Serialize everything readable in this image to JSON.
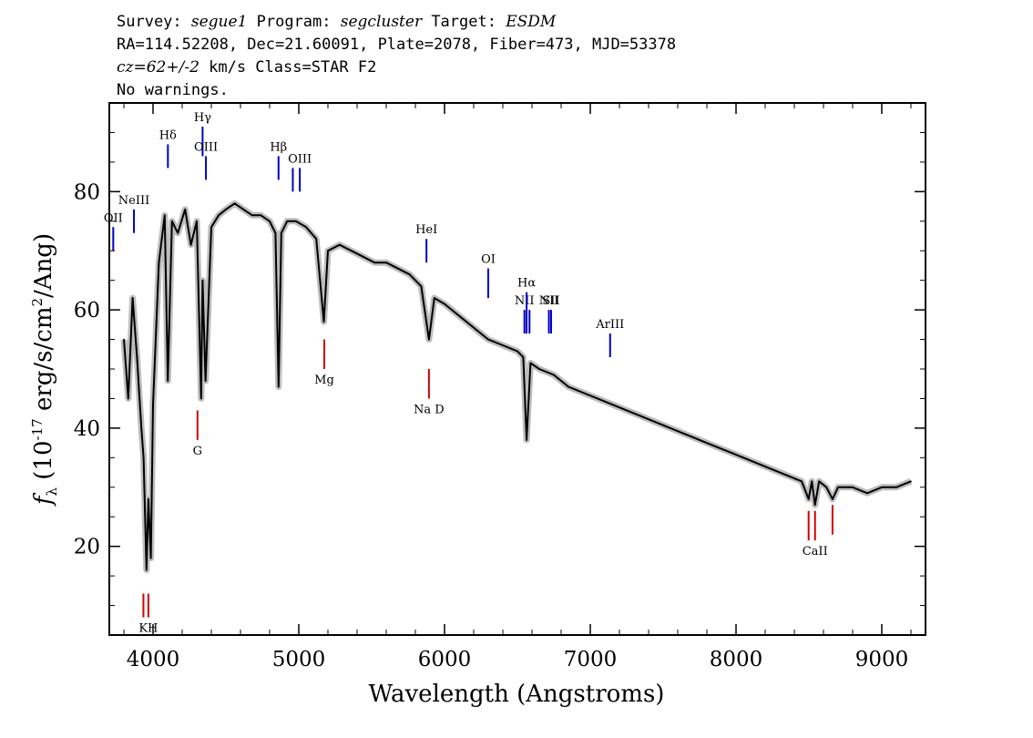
{
  "header": {
    "line1": {
      "survey_label": "Survey: ",
      "survey": "segue1",
      "program_label": " Program: ",
      "program": "segcluster",
      "target_label": " Target: ",
      "target": "ESDM"
    },
    "line2": "RA=114.52208, Dec=21.60091, Plate=2078, Fiber=473, MJD=53378",
    "line3": {
      "cz": "cz=62+/-2",
      "rest": " km/s Class=STAR F2"
    },
    "line4": "No warnings."
  },
  "chart_data": {
    "type": "line",
    "xlabel": "Wavelength (Angstroms)",
    "ylabel": "f_λ (10^-17 erg/s/cm^2/Ang)",
    "ylabel_parts": {
      "f": "f",
      "lambda": "λ",
      "open": " (10",
      "exp1": "-17",
      "mid": " erg/s/cm",
      "exp2": "2",
      "close": "/Ang)"
    },
    "xlim": [
      3700,
      9300
    ],
    "ylim": [
      5,
      95
    ],
    "xticks": [
      4000,
      5000,
      6000,
      7000,
      8000,
      9000
    ],
    "xtick_labels": [
      "4000",
      "5000",
      "6000",
      "7000",
      "8000",
      "9000"
    ],
    "yticks": [
      20,
      40,
      60,
      80
    ],
    "ytick_labels": [
      "20",
      "40",
      "60",
      "80"
    ],
    "grid": false,
    "series": [
      {
        "style": "black",
        "x": [
          3800,
          3830,
          3860,
          3890,
          3920,
          3935,
          3955,
          3968,
          3985,
          4000,
          4040,
          4080,
          4101,
          4130,
          4170,
          4220,
          4260,
          4300,
          4330,
          4340,
          4360,
          4400,
          4450,
          4500,
          4560,
          4620,
          4680,
          4740,
          4800,
          4840,
          4861,
          4880,
          4920,
          4980,
          5050,
          5120,
          5172,
          5200,
          5280,
          5360,
          5440,
          5520,
          5600,
          5680,
          5760,
          5840,
          5893,
          5930,
          6000,
          6100,
          6200,
          6300,
          6400,
          6500,
          6540,
          6563,
          6590,
          6650,
          6750,
          6850,
          6950,
          7050,
          7150,
          7250,
          7350,
          7450,
          7550,
          7650,
          7750,
          7850,
          7950,
          8050,
          8150,
          8250,
          8350,
          8450,
          8498,
          8520,
          8542,
          8570,
          8620,
          8662,
          8700,
          8800,
          8900,
          9000,
          9100,
          9200
        ],
        "y": [
          55,
          45,
          62,
          52,
          40,
          35,
          16,
          28,
          18,
          44,
          68,
          76,
          48,
          75,
          73,
          77,
          71,
          75,
          45,
          65,
          48,
          74,
          76,
          77,
          78,
          77,
          76,
          76,
          75,
          73,
          47,
          73,
          75,
          75,
          74,
          72,
          58,
          70,
          71,
          70,
          69,
          68,
          68,
          67,
          66,
          64,
          55,
          62,
          61,
          59,
          57,
          55,
          54,
          53,
          52,
          38,
          51,
          50,
          49,
          47,
          46,
          45,
          44,
          43,
          42,
          41,
          40,
          39,
          38,
          37,
          36,
          35,
          34,
          33,
          32,
          31,
          28,
          31,
          27,
          31,
          30,
          28,
          30,
          30,
          29,
          30,
          30,
          31
        ]
      }
    ],
    "emission_lines": [
      {
        "label": "OII",
        "wavelength": 3727,
        "y_top": 74,
        "y_bottom": 70,
        "color": "#0000c8"
      },
      {
        "label": "NeIII",
        "wavelength": 3869,
        "y_top": 77,
        "y_bottom": 73,
        "color": "#0000c8"
      },
      {
        "label": "Hδ",
        "wavelength": 4102,
        "y_top": 88,
        "y_bottom": 84,
        "color": "#0000c8"
      },
      {
        "label": "Hγ",
        "wavelength": 4340,
        "y_top": 91,
        "y_bottom": 86,
        "color": "#0000c8"
      },
      {
        "label": "OIII",
        "wavelength": 4363,
        "y_top": 86,
        "y_bottom": 82,
        "color": "#0000c8"
      },
      {
        "label": "Hβ",
        "wavelength": 4861,
        "y_top": 86,
        "y_bottom": 82,
        "color": "#0000c8"
      },
      {
        "label": "",
        "wavelength": 4959,
        "y_top": 84,
        "y_bottom": 80,
        "color": "#0000c8"
      },
      {
        "label": "OIII",
        "wavelength": 5007,
        "y_top": 84,
        "y_bottom": 80,
        "color": "#0000c8"
      },
      {
        "label": "HeI",
        "wavelength": 5876,
        "y_top": 72,
        "y_bottom": 68,
        "color": "#0000c8"
      },
      {
        "label": "OI",
        "wavelength": 6300,
        "y_top": 67,
        "y_bottom": 62,
        "color": "#0000c8"
      },
      {
        "label": "NII",
        "wavelength": 6548,
        "y_top": 60,
        "y_bottom": 56,
        "color": "#0000c8"
      },
      {
        "label": "Hα",
        "wavelength": 6563,
        "y_top": 63,
        "y_bottom": 56,
        "color": "#0000c8"
      },
      {
        "label": "",
        "wavelength": 6583,
        "y_top": 60,
        "y_bottom": 56,
        "color": "#0000c8"
      },
      {
        "label": "NII",
        "wavelength": 6716,
        "y_top": 60,
        "y_bottom": 56,
        "color": "#0000c8"
      },
      {
        "label": "SII",
        "wavelength": 6731,
        "y_top": 60,
        "y_bottom": 56,
        "color": "#0000c8"
      },
      {
        "label": "ArIII",
        "wavelength": 7136,
        "y_top": 56,
        "y_bottom": 52,
        "color": "#0000c8"
      }
    ],
    "absorption_lines": [
      {
        "label": "",
        "wavelength": 3934,
        "y_top": 12,
        "y_bottom": 8,
        "color": "#d00000"
      },
      {
        "label": "KH",
        "wavelength": 3968,
        "y_top": 12,
        "y_bottom": 8,
        "color": "#d00000"
      },
      {
        "label": "G",
        "wavelength": 4305,
        "y_top": 43,
        "y_bottom": 38,
        "color": "#d00000"
      },
      {
        "label": "Mg",
        "wavelength": 5175,
        "y_top": 55,
        "y_bottom": 50,
        "color": "#d00000"
      },
      {
        "label": "Na D",
        "wavelength": 5893,
        "y_top": 50,
        "y_bottom": 45,
        "color": "#d00000"
      },
      {
        "label": "",
        "wavelength": 8498,
        "y_top": 26,
        "y_bottom": 21,
        "color": "#d00000"
      },
      {
        "label": "CaII",
        "wavelength": 8542,
        "y_top": 26,
        "y_bottom": 21,
        "color": "#d00000"
      },
      {
        "label": "",
        "wavelength": 8662,
        "y_top": 27,
        "y_bottom": 22,
        "color": "#d00000"
      }
    ]
  }
}
